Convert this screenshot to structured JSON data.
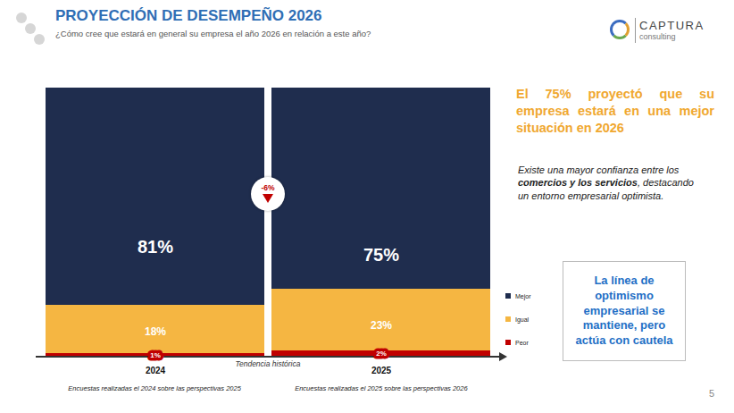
{
  "chart_data": {
    "type": "bar",
    "title": "PROYECCIÓN DE DESEMPEÑO 2026",
    "subtitle": "¿Cómo cree que estará en general su empresa el año 2026 en relación a este año?",
    "categories": [
      "2024",
      "2025"
    ],
    "series": [
      {
        "name": "Mejor",
        "color": "#1f2d4e",
        "values": [
          81,
          75
        ],
        "value_labels": [
          "81%",
          "75%"
        ]
      },
      {
        "name": "Igual",
        "color": "#f5b642",
        "values": [
          18,
          23
        ],
        "value_labels": [
          "18%",
          "23%"
        ]
      },
      {
        "name": "Peor",
        "color": "#c00000",
        "values": [
          1,
          2
        ],
        "value_labels": [
          "1%",
          "2%"
        ]
      }
    ],
    "stacked": true,
    "data_labels": true,
    "ylim": [
      0,
      100
    ],
    "tick_labels": "x",
    "legend": "right",
    "xlabel": "Tendencia histórica",
    "annotations": {
      "change": {
        "value": -6,
        "label": "-6%"
      },
      "notes": [
        "Encuestas realizadas el 2024 sobre las perspectivas 2025",
        "Encuestas realizadas el 2025 sobre las perspectivas 2026"
      ]
    }
  },
  "brand": [
    "CAPTURA",
    "consulting"
  ],
  "headline": "El 75% proyectó que su empresa estará en una mejor situación en 2026",
  "body_parts": [
    "Existe una mayor confianza entre los ",
    "comercios y los servicios",
    ", destacando un entorno empresarial optimista."
  ],
  "box": "La línea de optimismo empresarial se mantiene, pero actúa con cautela",
  "page": "5"
}
